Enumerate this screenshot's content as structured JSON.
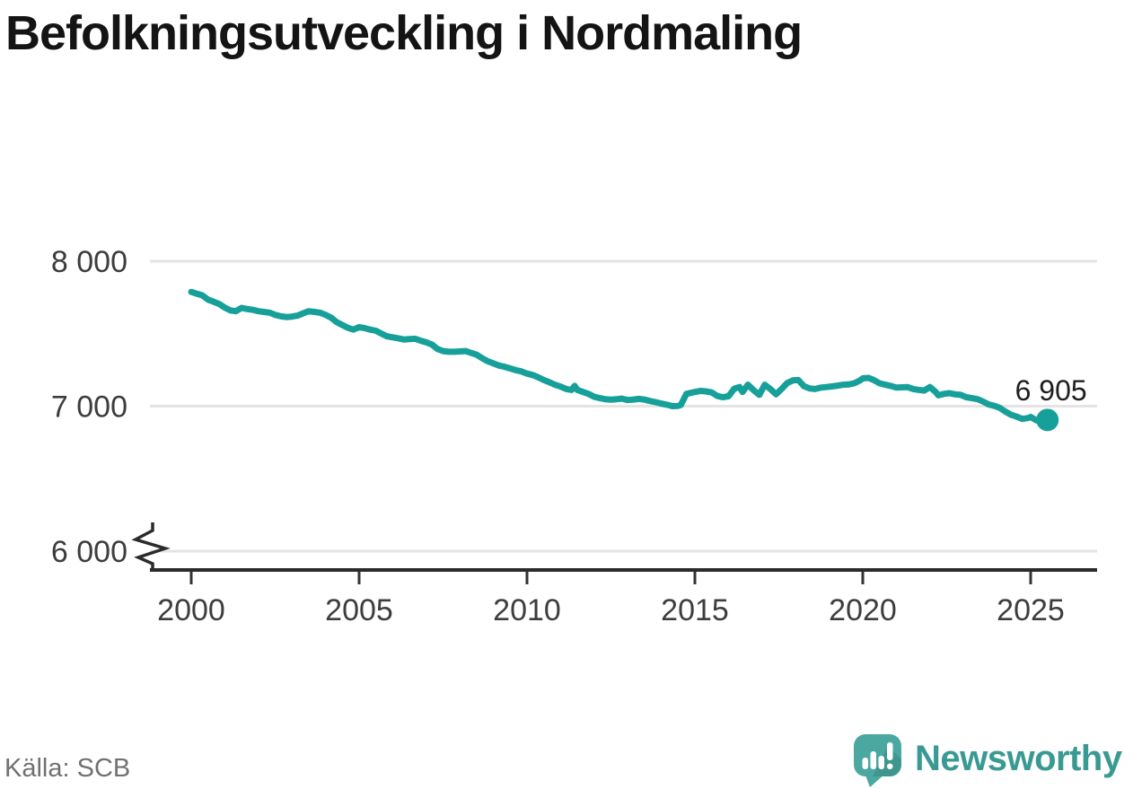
{
  "header": {
    "title": "Befolkningsutveckling i Nordmaling"
  },
  "footer": {
    "source_label": "Källa: SCB",
    "brand_name": "Newsworthy"
  },
  "colors": {
    "line": "#17a09a",
    "grid": "#e4e4e4",
    "axis": "#2b2b2b",
    "tick_label": "#3d3d40",
    "title": "#141414",
    "source": "#717175",
    "end_label": "#1f1f1f",
    "logo_bubble": "#4aa8a1",
    "logo_bubble_shade": "#3f968f",
    "logo_text": "#399a93"
  },
  "chart_data": {
    "type": "line",
    "title": "Befolkningsutveckling i Nordmaling",
    "xlabel": "",
    "ylabel": "",
    "grid": "horizontal",
    "legend": "none",
    "axis_break_bottom": true,
    "xlim": [
      1998.8,
      2027
    ],
    "ylim": [
      6000,
      8000
    ],
    "xticks": [
      {
        "value": 2000,
        "label": "2000"
      },
      {
        "value": 2005,
        "label": "2005"
      },
      {
        "value": 2010,
        "label": "2010"
      },
      {
        "value": 2015,
        "label": "2015"
      },
      {
        "value": 2020,
        "label": "2020"
      },
      {
        "value": 2025,
        "label": "2025"
      }
    ],
    "yticks": [
      {
        "value": 8000,
        "label": "8 000"
      },
      {
        "value": 7000,
        "label": "7 000"
      },
      {
        "value": 6000,
        "label": "6 000"
      }
    ],
    "end_label": "6 905",
    "end_value": 6905,
    "series": [
      {
        "name": "Befolkning",
        "points": [
          [
            2000.0,
            7788
          ],
          [
            2000.17,
            7775
          ],
          [
            2000.33,
            7765
          ],
          [
            2000.5,
            7735
          ],
          [
            2000.67,
            7720
          ],
          [
            2000.83,
            7705
          ],
          [
            2001.0,
            7680
          ],
          [
            2001.17,
            7660
          ],
          [
            2001.33,
            7655
          ],
          [
            2001.5,
            7678
          ],
          [
            2001.67,
            7670
          ],
          [
            2001.83,
            7665
          ],
          [
            2002.0,
            7655
          ],
          [
            2002.17,
            7650
          ],
          [
            2002.33,
            7645
          ],
          [
            2002.5,
            7630
          ],
          [
            2002.67,
            7620
          ],
          [
            2002.83,
            7615
          ],
          [
            2003.0,
            7618
          ],
          [
            2003.17,
            7625
          ],
          [
            2003.33,
            7640
          ],
          [
            2003.5,
            7655
          ],
          [
            2003.67,
            7650
          ],
          [
            2003.83,
            7645
          ],
          [
            2004.0,
            7630
          ],
          [
            2004.17,
            7610
          ],
          [
            2004.33,
            7580
          ],
          [
            2004.5,
            7560
          ],
          [
            2004.67,
            7540
          ],
          [
            2004.83,
            7528
          ],
          [
            2005.0,
            7545
          ],
          [
            2005.17,
            7538
          ],
          [
            2005.33,
            7528
          ],
          [
            2005.5,
            7520
          ],
          [
            2005.67,
            7500
          ],
          [
            2005.83,
            7482
          ],
          [
            2006.0,
            7475
          ],
          [
            2006.17,
            7468
          ],
          [
            2006.33,
            7460
          ],
          [
            2006.5,
            7463
          ],
          [
            2006.67,
            7465
          ],
          [
            2006.83,
            7452
          ],
          [
            2007.0,
            7440
          ],
          [
            2007.17,
            7425
          ],
          [
            2007.33,
            7395
          ],
          [
            2007.5,
            7380
          ],
          [
            2007.67,
            7375
          ],
          [
            2007.83,
            7375
          ],
          [
            2008.0,
            7378
          ],
          [
            2008.17,
            7380
          ],
          [
            2008.33,
            7368
          ],
          [
            2008.5,
            7355
          ],
          [
            2008.67,
            7330
          ],
          [
            2008.83,
            7310
          ],
          [
            2009.0,
            7295
          ],
          [
            2009.17,
            7280
          ],
          [
            2009.33,
            7272
          ],
          [
            2009.5,
            7260
          ],
          [
            2009.67,
            7248
          ],
          [
            2009.83,
            7240
          ],
          [
            2010.0,
            7225
          ],
          [
            2010.17,
            7215
          ],
          [
            2010.33,
            7200
          ],
          [
            2010.5,
            7180
          ],
          [
            2010.67,
            7165
          ],
          [
            2010.83,
            7148
          ],
          [
            2011.0,
            7135
          ],
          [
            2011.17,
            7118
          ],
          [
            2011.33,
            7112
          ],
          [
            2011.42,
            7140
          ],
          [
            2011.5,
            7112
          ],
          [
            2011.67,
            7098
          ],
          [
            2011.83,
            7085
          ],
          [
            2012.0,
            7065
          ],
          [
            2012.17,
            7055
          ],
          [
            2012.33,
            7048
          ],
          [
            2012.5,
            7045
          ],
          [
            2012.67,
            7048
          ],
          [
            2012.83,
            7052
          ],
          [
            2013.0,
            7042
          ],
          [
            2013.17,
            7046
          ],
          [
            2013.33,
            7050
          ],
          [
            2013.5,
            7045
          ],
          [
            2013.67,
            7035
          ],
          [
            2013.83,
            7028
          ],
          [
            2014.0,
            7018
          ],
          [
            2014.17,
            7010
          ],
          [
            2014.33,
            7000
          ],
          [
            2014.5,
            7002
          ],
          [
            2014.58,
            7008
          ],
          [
            2014.75,
            7085
          ],
          [
            2015.0,
            7098
          ],
          [
            2015.17,
            7105
          ],
          [
            2015.33,
            7102
          ],
          [
            2015.5,
            7095
          ],
          [
            2015.67,
            7070
          ],
          [
            2015.83,
            7062
          ],
          [
            2016.0,
            7068
          ],
          [
            2016.17,
            7120
          ],
          [
            2016.33,
            7132
          ],
          [
            2016.42,
            7098
          ],
          [
            2016.58,
            7148
          ],
          [
            2016.75,
            7110
          ],
          [
            2016.92,
            7078
          ],
          [
            2017.08,
            7148
          ],
          [
            2017.25,
            7118
          ],
          [
            2017.42,
            7082
          ],
          [
            2017.58,
            7118
          ],
          [
            2017.75,
            7160
          ],
          [
            2017.92,
            7178
          ],
          [
            2018.08,
            7180
          ],
          [
            2018.25,
            7138
          ],
          [
            2018.42,
            7122
          ],
          [
            2018.58,
            7118
          ],
          [
            2018.75,
            7128
          ],
          [
            2018.92,
            7132
          ],
          [
            2019.08,
            7136
          ],
          [
            2019.25,
            7142
          ],
          [
            2019.42,
            7148
          ],
          [
            2019.58,
            7150
          ],
          [
            2019.75,
            7158
          ],
          [
            2019.92,
            7178
          ],
          [
            2020.0,
            7192
          ],
          [
            2020.17,
            7195
          ],
          [
            2020.33,
            7180
          ],
          [
            2020.5,
            7158
          ],
          [
            2020.67,
            7148
          ],
          [
            2020.83,
            7140
          ],
          [
            2021.0,
            7128
          ],
          [
            2021.17,
            7130
          ],
          [
            2021.33,
            7132
          ],
          [
            2021.5,
            7118
          ],
          [
            2021.67,
            7112
          ],
          [
            2021.83,
            7108
          ],
          [
            2022.0,
            7132
          ],
          [
            2022.17,
            7098
          ],
          [
            2022.25,
            7075
          ],
          [
            2022.42,
            7085
          ],
          [
            2022.58,
            7090
          ],
          [
            2022.75,
            7082
          ],
          [
            2022.92,
            7078
          ],
          [
            2023.08,
            7062
          ],
          [
            2023.25,
            7055
          ],
          [
            2023.42,
            7048
          ],
          [
            2023.58,
            7032
          ],
          [
            2023.75,
            7012
          ],
          [
            2023.92,
            7002
          ],
          [
            2024.08,
            6988
          ],
          [
            2024.25,
            6962
          ],
          [
            2024.42,
            6940
          ],
          [
            2024.58,
            6928
          ],
          [
            2024.75,
            6912
          ],
          [
            2024.92,
            6918
          ],
          [
            2025.0,
            6926
          ],
          [
            2025.17,
            6902
          ],
          [
            2025.33,
            6895
          ],
          [
            2025.5,
            6905
          ]
        ]
      }
    ]
  }
}
